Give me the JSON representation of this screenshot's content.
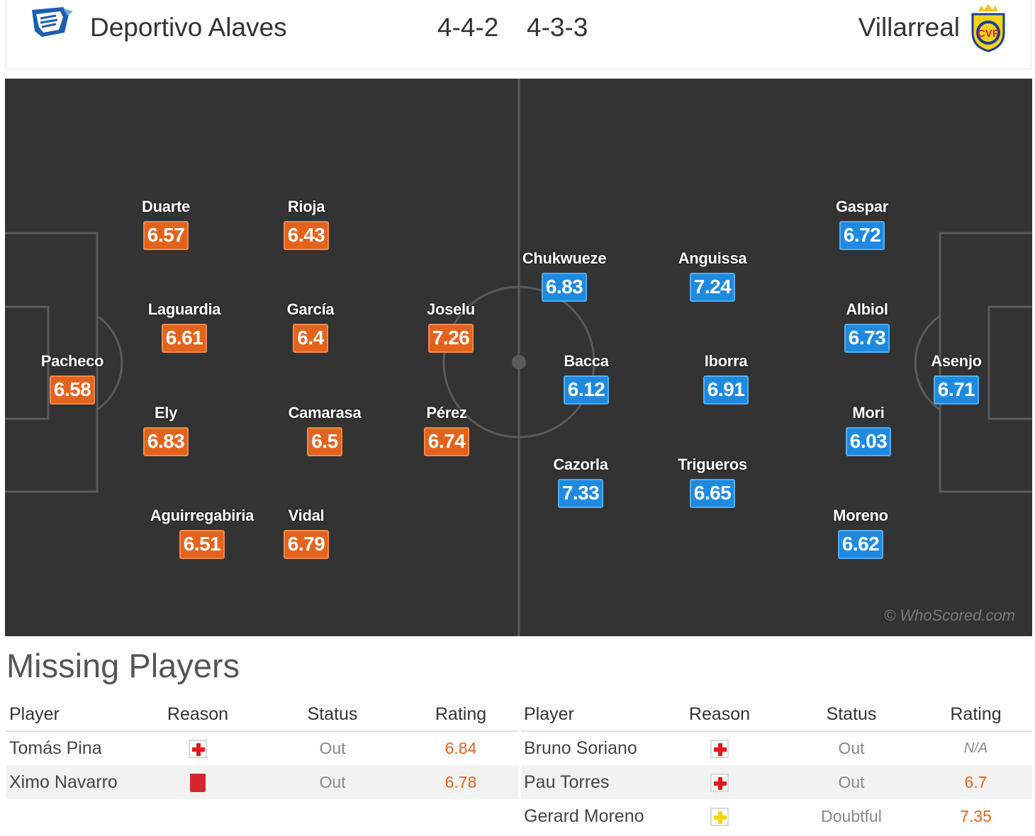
{
  "header": {
    "home_team": "Deportivo Alaves",
    "away_team": "Villarreal",
    "home_formation": "4-4-2",
    "away_formation": "4-3-3",
    "home_crest_icon": "alaves-crest-icon",
    "away_crest_icon": "villarreal-crest-icon"
  },
  "pitch": {
    "watermark": "© WhoScored.com",
    "home_color": "#e4631c",
    "away_color": "#1d8ae0",
    "home_players": [
      {
        "name": "Pacheco",
        "rating": "6.58"
      },
      {
        "name": "Duarte",
        "rating": "6.57"
      },
      {
        "name": "Laguardia",
        "rating": "6.61"
      },
      {
        "name": "Ely",
        "rating": "6.83"
      },
      {
        "name": "Aguirregabiria",
        "rating": "6.51"
      },
      {
        "name": "Rioja",
        "rating": "6.43"
      },
      {
        "name": "García",
        "rating": "6.4"
      },
      {
        "name": "Camarasa",
        "rating": "6.5"
      },
      {
        "name": "Vidal",
        "rating": "6.79"
      },
      {
        "name": "Joselu",
        "rating": "7.26"
      },
      {
        "name": "Pérez",
        "rating": "6.74"
      }
    ],
    "away_players": [
      {
        "name": "Asenjo",
        "rating": "6.71"
      },
      {
        "name": "Gaspar",
        "rating": "6.72"
      },
      {
        "name": "Albiol",
        "rating": "6.73"
      },
      {
        "name": "Mori",
        "rating": "6.03"
      },
      {
        "name": "Moreno",
        "rating": "6.62"
      },
      {
        "name": "Anguissa",
        "rating": "7.24"
      },
      {
        "name": "Iborra",
        "rating": "6.91"
      },
      {
        "name": "Trigueros",
        "rating": "6.65"
      },
      {
        "name": "Chukwueze",
        "rating": "6.83"
      },
      {
        "name": "Bacca",
        "rating": "6.12"
      },
      {
        "name": "Cazorla",
        "rating": "7.33"
      }
    ]
  },
  "missing": {
    "title": "Missing Players",
    "columns": [
      "Player",
      "Reason",
      "Status",
      "Rating"
    ],
    "home": [
      {
        "player": "Tomás Pina",
        "reason_icon": "injury-icon",
        "status": "Out",
        "rating": "6.84"
      },
      {
        "player": "Ximo Navarro",
        "reason_icon": "red-card-icon",
        "status": "Out",
        "rating": "6.78"
      }
    ],
    "away": [
      {
        "player": "Bruno Soriano",
        "reason_icon": "injury-icon",
        "status": "Out",
        "rating": "N/A"
      },
      {
        "player": "Pau Torres",
        "reason_icon": "injury-icon",
        "status": "Out",
        "rating": "6.7"
      },
      {
        "player": "Gerard Moreno",
        "reason_icon": "doubtful-injury-icon",
        "status": "Doubtful",
        "rating": "7.35"
      }
    ]
  }
}
